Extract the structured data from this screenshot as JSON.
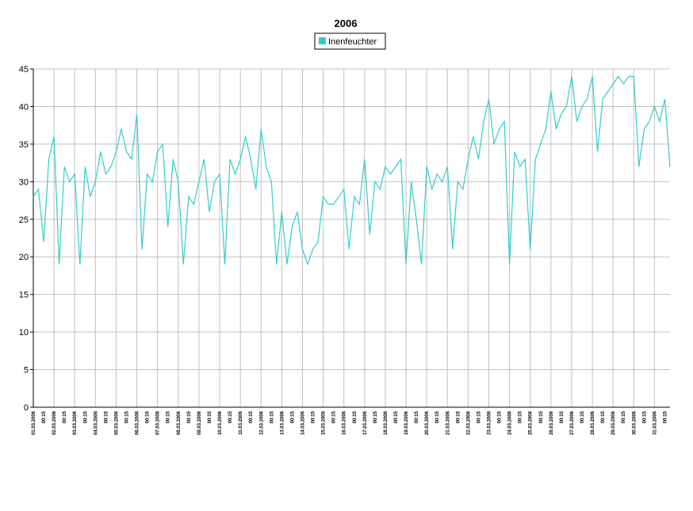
{
  "chart_data": {
    "type": "line",
    "title": "2006",
    "categories": [
      "01.03.2006",
      null,
      "00:15",
      null,
      "02.03.2006",
      null,
      "00:15",
      null,
      "03.03.2006",
      null,
      "00:15",
      null,
      "04.03.2006",
      null,
      "00:15",
      null,
      "05.03.2006",
      null,
      "00:15",
      null,
      "06.03.2006",
      null,
      "00:15",
      null,
      "07.03.2006",
      null,
      "00:15",
      null,
      "08.03.2006",
      null,
      "00:15",
      null,
      "09.03.2006",
      null,
      "00:15",
      null,
      "10.03.2006",
      null,
      "00:15",
      null,
      "11.03.2006",
      null,
      "00:15",
      null,
      "12.03.2006",
      null,
      "00:15",
      null,
      "13.03.2006",
      null,
      "00:15",
      null,
      "14.03.2006",
      null,
      "00:15",
      null,
      "15.03.2006",
      null,
      "00:15",
      null,
      "16.03.2006",
      null,
      "00:15",
      null,
      "17.03.2006",
      null,
      "00:15",
      null,
      "18.03.2006",
      null,
      "00:15",
      null,
      "19.03.2006",
      null,
      "00:15",
      null,
      "20.03.2006",
      null,
      "00:15",
      null,
      "21.03.2006",
      null,
      "00:15",
      null,
      "22.03.2006",
      null,
      "00:15",
      null,
      "23.03.2006",
      null,
      "00:15",
      null,
      "24.03.2006",
      null,
      "00:15",
      null,
      "25.03.2006",
      null,
      "00:15",
      null,
      "26.03.2006",
      null,
      "00:15",
      null,
      "27.03.2006",
      null,
      "00:15",
      null,
      "28.03.2006",
      null,
      "00:15",
      null,
      "29.03.2006",
      null,
      "00:15",
      null,
      "30.03.2006",
      null,
      "00:15",
      null,
      "31.03.2006",
      null,
      "00:15",
      null
    ],
    "series": [
      {
        "name": "Inenfeuchter",
        "color": "#33cccc",
        "values": [
          28,
          29,
          22,
          33,
          36,
          19,
          32,
          30,
          31,
          19,
          32,
          28,
          30,
          34,
          31,
          32,
          34,
          37,
          34,
          33,
          39,
          21,
          31,
          30,
          34,
          35,
          24,
          33,
          30,
          19,
          28,
          27,
          30,
          33,
          26,
          30,
          31,
          19,
          33,
          31,
          33,
          36,
          33,
          29,
          37,
          32,
          30,
          19,
          26,
          19,
          24,
          26,
          21,
          19,
          21,
          22,
          28,
          27,
          27,
          28,
          29,
          21,
          28,
          27,
          33,
          23,
          30,
          29,
          32,
          31,
          32,
          33,
          19,
          30,
          25,
          19,
          32,
          29,
          31,
          30,
          32,
          21,
          30,
          29,
          33,
          36,
          33,
          38,
          41,
          35,
          37,
          38,
          19,
          34,
          32,
          33,
          21,
          33,
          35,
          37,
          42,
          37,
          39,
          40,
          44,
          38,
          40,
          41,
          44,
          34,
          41,
          42,
          43,
          44,
          43,
          44,
          44,
          32,
          37,
          38,
          40,
          38,
          41,
          32
        ]
      }
    ],
    "ylim": [
      0,
      45
    ],
    "yticks": [
      0,
      5,
      10,
      15,
      20,
      25,
      30,
      35,
      40,
      45
    ],
    "grid": true
  }
}
